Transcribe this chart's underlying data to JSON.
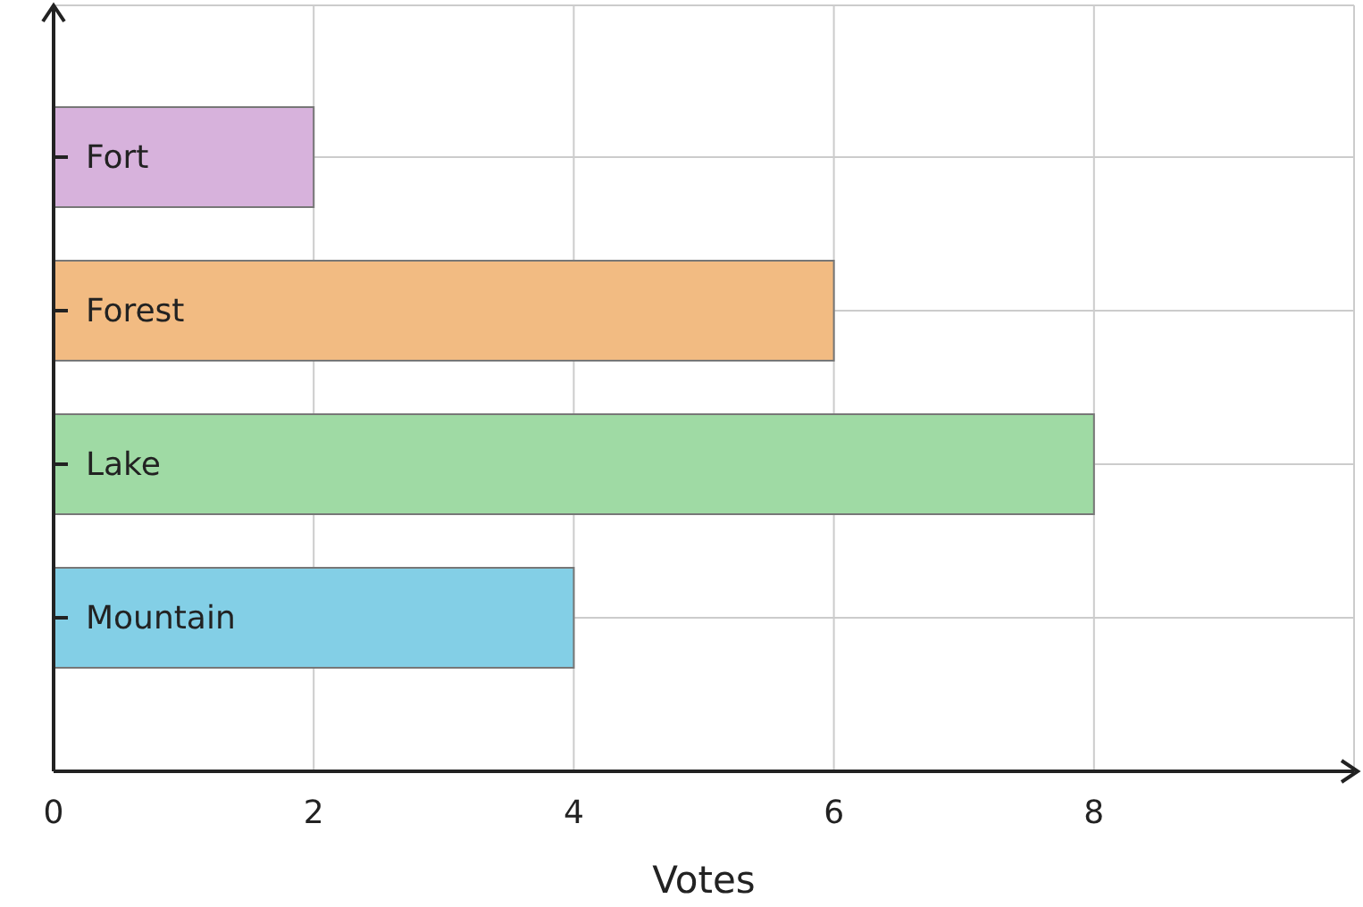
{
  "chart_data": {
    "type": "bar",
    "orientation": "horizontal",
    "xlabel": "Votes",
    "categories": [
      "Fort",
      "Forest",
      "Lake",
      "Mountain"
    ],
    "values": [
      2,
      6,
      8,
      4
    ],
    "colors": [
      "#d7b2dc",
      "#f2bb82",
      "#9fdaa4",
      "#83cfe6"
    ],
    "xlim": [
      0,
      10
    ],
    "xticks": [
      0,
      2,
      4,
      6,
      8
    ],
    "grid": true
  }
}
